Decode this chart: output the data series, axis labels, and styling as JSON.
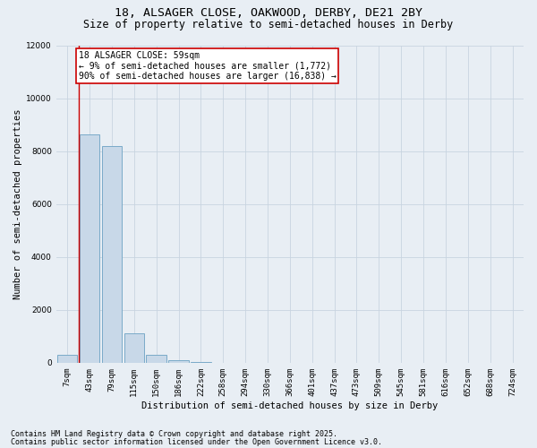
{
  "title_line1": "18, ALSAGER CLOSE, OAKWOOD, DERBY, DE21 2BY",
  "title_line2": "Size of property relative to semi-detached houses in Derby",
  "xlabel": "Distribution of semi-detached houses by size in Derby",
  "ylabel": "Number of semi-detached properties",
  "categories": [
    "7sqm",
    "43sqm",
    "79sqm",
    "115sqm",
    "150sqm",
    "186sqm",
    "222sqm",
    "258sqm",
    "294sqm",
    "330sqm",
    "366sqm",
    "401sqm",
    "437sqm",
    "473sqm",
    "509sqm",
    "545sqm",
    "581sqm",
    "616sqm",
    "652sqm",
    "688sqm",
    "724sqm"
  ],
  "values": [
    300,
    8650,
    8200,
    1100,
    310,
    100,
    30,
    5,
    0,
    0,
    0,
    0,
    0,
    0,
    0,
    0,
    0,
    0,
    0,
    0,
    0
  ],
  "bar_color": "#c8d8e8",
  "bar_edge_color": "#7aaac8",
  "red_line_x": 0.5,
  "ylim": [
    0,
    12000
  ],
  "yticks": [
    0,
    2000,
    4000,
    6000,
    8000,
    10000,
    12000
  ],
  "annotation_title": "18 ALSAGER CLOSE: 59sqm",
  "annotation_line1": "← 9% of semi-detached houses are smaller (1,772)",
  "annotation_line2": "90% of semi-detached houses are larger (16,838) →",
  "annotation_box_color": "#ffffff",
  "annotation_box_edge_color": "#cc0000",
  "red_line_color": "#cc0000",
  "grid_color": "#c8d4e0",
  "bg_color": "#e8eef4",
  "plot_bg_color": "#e8eef4",
  "footer_line1": "Contains HM Land Registry data © Crown copyright and database right 2025.",
  "footer_line2": "Contains public sector information licensed under the Open Government Licence v3.0.",
  "title_fontsize": 9.5,
  "subtitle_fontsize": 8.5,
  "axis_label_fontsize": 7.5,
  "tick_fontsize": 6.5,
  "annotation_fontsize": 7,
  "footer_fontsize": 6
}
